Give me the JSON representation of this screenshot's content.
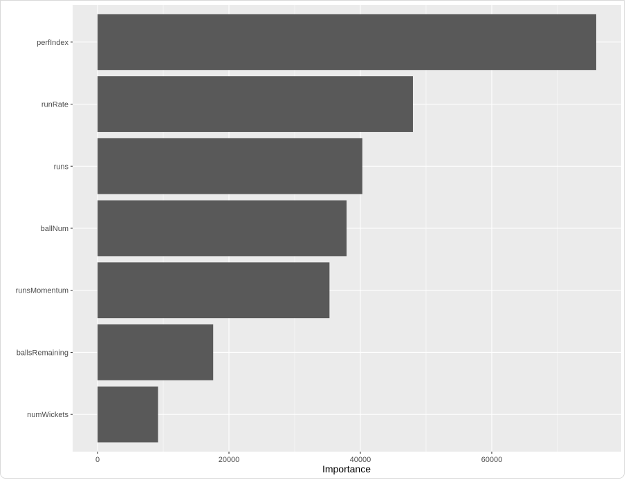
{
  "chart_data": {
    "type": "bar",
    "orientation": "horizontal",
    "categories": [
      "perfIndex",
      "runRate",
      "runs",
      "ballNum",
      "runsMomentum",
      "ballsRemaining",
      "numWickets"
    ],
    "values": [
      75900,
      48000,
      40300,
      37900,
      35300,
      17600,
      9200
    ],
    "title": "",
    "xlabel": "Importance",
    "ylabel": "",
    "xlim": [
      -3795,
      79695
    ],
    "xticks": [
      0,
      20000,
      40000,
      60000
    ],
    "xtick_labels": [
      "0",
      "20000",
      "40000",
      "60000"
    ],
    "grid": true,
    "colors": {
      "bar": "#595959",
      "panel": "#ebebeb",
      "grid": "#ffffff"
    }
  }
}
